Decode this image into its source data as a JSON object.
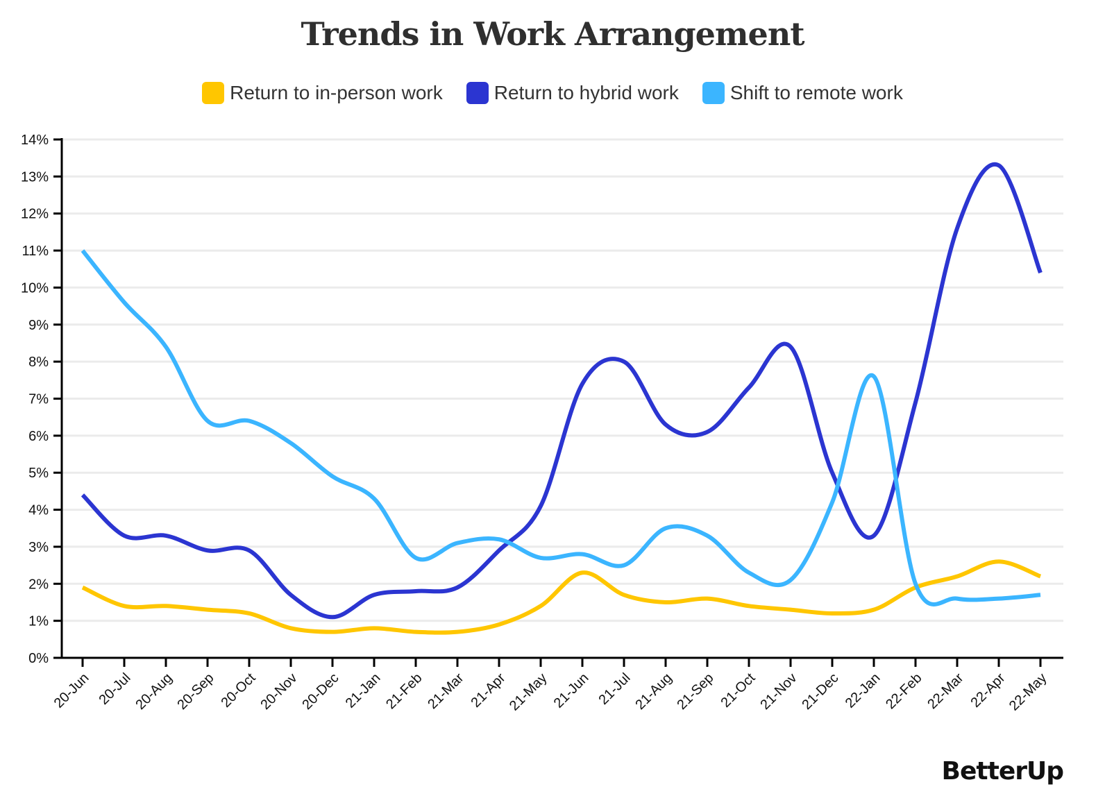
{
  "title": "Trends in Work Arrangement",
  "logo": "BetterUp",
  "legend": [
    {
      "label": "Return to in-person work",
      "color": "#FFC600"
    },
    {
      "label": "Return to hybrid work",
      "color": "#2B35D1"
    },
    {
      "label": "Shift to remote work",
      "color": "#3BB5FF"
    }
  ],
  "chart_data": {
    "type": "line",
    "title": "Trends in Work Arrangement",
    "xlabel": "",
    "ylabel": "",
    "ylim": [
      0,
      14
    ],
    "y_ticks": [
      "0%",
      "1%",
      "2%",
      "3%",
      "4%",
      "5%",
      "6%",
      "7%",
      "8%",
      "9%",
      "10%",
      "11%",
      "12%",
      "13%",
      "14%"
    ],
    "grid": true,
    "legend_position": "top",
    "categories": [
      "20-Jun",
      "20-Jul",
      "20-Aug",
      "20-Sep",
      "20-Oct",
      "20-Nov",
      "20-Dec",
      "21-Jan",
      "21-Feb",
      "21-Mar",
      "21-Apr",
      "21-May",
      "21-Jun",
      "21-Jul",
      "21-Aug",
      "21-Sep",
      "21-Oct",
      "21-Nov",
      "21-Dec",
      "22-Jan",
      "22-Feb",
      "22-Mar",
      "22-Apr",
      "22-May"
    ],
    "series": [
      {
        "name": "Return to in-person work",
        "color": "#FFC600",
        "values": [
          1.9,
          1.4,
          1.4,
          1.3,
          1.2,
          0.8,
          0.7,
          0.8,
          0.7,
          0.7,
          0.9,
          1.4,
          2.3,
          1.7,
          1.5,
          1.6,
          1.4,
          1.3,
          1.2,
          1.3,
          1.9,
          2.2,
          2.6,
          2.2
        ]
      },
      {
        "name": "Return to hybrid work",
        "color": "#2B35D1",
        "values": [
          4.4,
          3.3,
          3.3,
          2.9,
          2.9,
          1.7,
          1.1,
          1.7,
          1.8,
          1.9,
          2.9,
          4.1,
          7.4,
          8.0,
          6.3,
          6.1,
          7.3,
          8.4,
          5.0,
          3.3,
          6.9,
          11.6,
          13.3,
          10.4
        ]
      },
      {
        "name": "Shift to remote work",
        "color": "#3BB5FF",
        "values": [
          11.0,
          9.6,
          8.4,
          6.4,
          6.4,
          5.8,
          4.9,
          4.3,
          2.7,
          3.1,
          3.2,
          2.7,
          2.8,
          2.5,
          3.5,
          3.3,
          2.3,
          2.1,
          4.2,
          7.6,
          2.0,
          1.6,
          1.6,
          1.7
        ]
      }
    ]
  }
}
